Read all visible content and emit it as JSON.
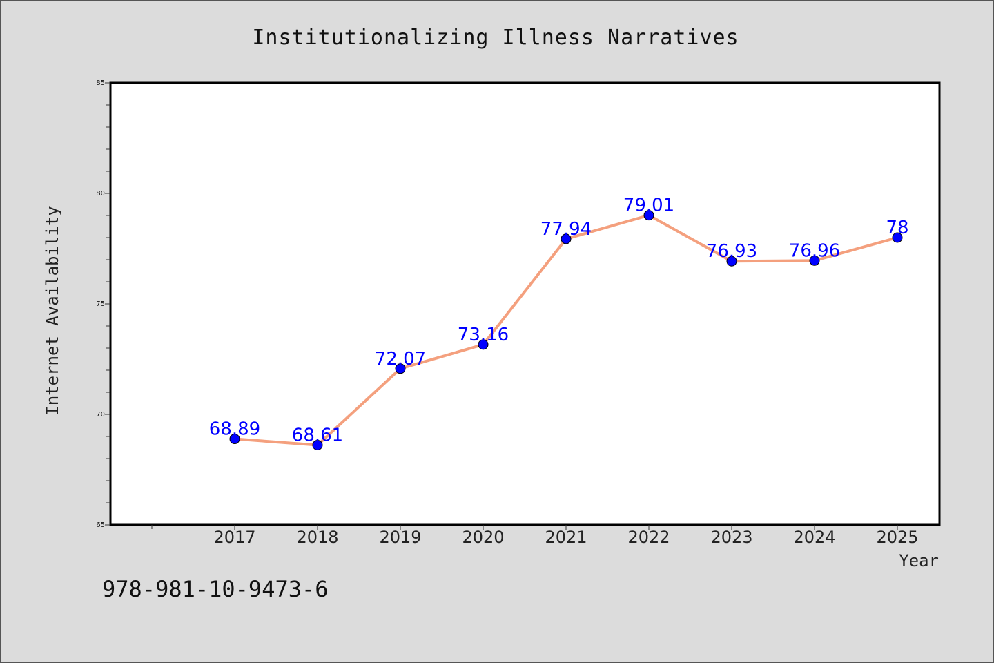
{
  "chart_data": {
    "type": "line",
    "title": "Institutionalizing Illness Narratives",
    "xlabel": "Year",
    "ylabel": "Internet Availability",
    "x": [
      "2017",
      "2018",
      "2019",
      "2020",
      "2021",
      "2022",
      "2023",
      "2024",
      "2025"
    ],
    "series": [
      {
        "values": [
          68.89,
          68.61,
          72.07,
          73.16,
          77.94,
          79.01,
          76.93,
          76.96,
          78
        ],
        "data_labels": [
          "68.89",
          "68.61",
          "72.07",
          "73.16",
          "77.94",
          "79.01",
          "76.93",
          "76.96",
          "78"
        ],
        "line_color": "#f4a07e",
        "marker_color": "#0000ff"
      }
    ],
    "ylim": [
      65,
      85
    ],
    "y_ticks": [
      "65",
      "70",
      "75",
      "80",
      "85"
    ],
    "grid": false,
    "legend": "none"
  },
  "annotation": {
    "isbn": "978-981-10-9473-6"
  },
  "colors": {
    "background": "#dcdcdc",
    "plot_background": "#ffffff",
    "line": "#f4a07e",
    "marker": "#0000ff",
    "data_label": "#0000ff"
  }
}
